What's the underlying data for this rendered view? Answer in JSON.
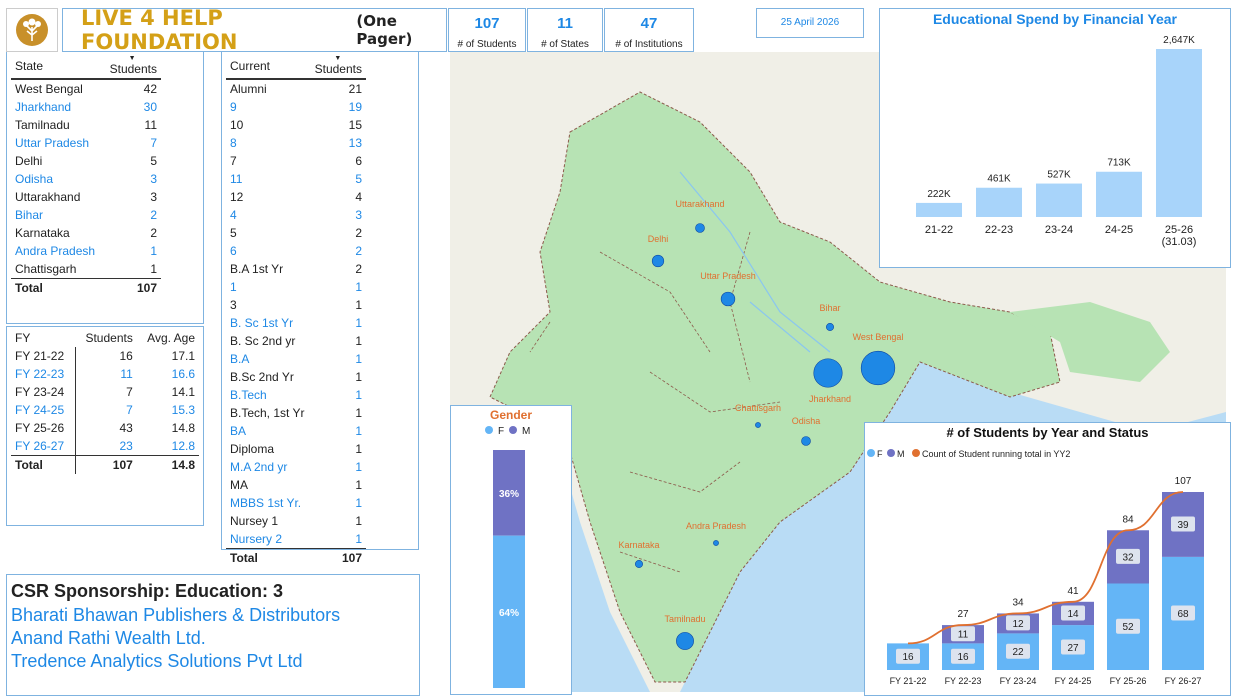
{
  "header": {
    "title": "LIVE 4 HELP FOUNDATION",
    "subtitle": "(One Pager)",
    "date": "25 April 2026"
  },
  "kpis": [
    {
      "value": "107",
      "label": "# of Students"
    },
    {
      "value": "11",
      "label": "# of States"
    },
    {
      "value": "47",
      "label": "# of Institutions"
    }
  ],
  "state_table": {
    "col1": "State",
    "col2": "Students",
    "rows": [
      {
        "name": "West Bengal",
        "value": "42"
      },
      {
        "name": "Jharkhand",
        "value": "30"
      },
      {
        "name": "Tamilnadu",
        "value": "11"
      },
      {
        "name": "Uttar Pradesh",
        "value": "7"
      },
      {
        "name": "Delhi",
        "value": "5"
      },
      {
        "name": "Odisha",
        "value": "3"
      },
      {
        "name": "Uttarakhand",
        "value": "3"
      },
      {
        "name": "Bihar",
        "value": "2"
      },
      {
        "name": "Karnataka",
        "value": "2"
      },
      {
        "name": "Andra Pradesh",
        "value": "1"
      },
      {
        "name": "Chattisgarh",
        "value": "1"
      }
    ],
    "total_label": "Total",
    "total_value": "107"
  },
  "current_table": {
    "col1": "Current",
    "col2": "Students",
    "rows": [
      {
        "name": "Alumni",
        "value": "21"
      },
      {
        "name": "9",
        "value": "19"
      },
      {
        "name": "10",
        "value": "15"
      },
      {
        "name": "8",
        "value": "13"
      },
      {
        "name": "7",
        "value": "6"
      },
      {
        "name": "11",
        "value": "5"
      },
      {
        "name": "12",
        "value": "4"
      },
      {
        "name": "4",
        "value": "3"
      },
      {
        "name": "5",
        "value": "2"
      },
      {
        "name": "6",
        "value": "2"
      },
      {
        "name": "B.A 1st Yr",
        "value": "2"
      },
      {
        "name": "1",
        "value": "1"
      },
      {
        "name": "3",
        "value": "1"
      },
      {
        "name": "B. Sc 1st Yr",
        "value": "1"
      },
      {
        "name": "B. Sc 2nd yr",
        "value": "1"
      },
      {
        "name": "B.A",
        "value": "1"
      },
      {
        "name": "B.Sc 2nd Yr",
        "value": "1"
      },
      {
        "name": "B.Tech",
        "value": "1"
      },
      {
        "name": "B.Tech, 1st Yr",
        "value": "1"
      },
      {
        "name": "BA",
        "value": "1"
      },
      {
        "name": "Diploma",
        "value": "1"
      },
      {
        "name": "M.A 2nd yr",
        "value": "1"
      },
      {
        "name": "MA",
        "value": "1"
      },
      {
        "name": "MBBS 1st Yr.",
        "value": "1"
      },
      {
        "name": "Nursey 1",
        "value": "1"
      },
      {
        "name": "Nursery 2",
        "value": "1"
      }
    ],
    "total_label": "Total",
    "total_value": "107"
  },
  "fy_table": {
    "col1": "FY",
    "col2": "Students",
    "col3": "Avg. Age",
    "rows": [
      {
        "fy": "FY 21-22",
        "students": "16",
        "age": "17.1"
      },
      {
        "fy": "FY 22-23",
        "students": "11",
        "age": "16.6"
      },
      {
        "fy": "FY 23-24",
        "students": "7",
        "age": "14.1"
      },
      {
        "fy": "FY 24-25",
        "students": "7",
        "age": "15.3"
      },
      {
        "fy": "FY 25-26",
        "students": "43",
        "age": "14.8"
      },
      {
        "fy": "FY 26-27",
        "students": "23",
        "age": "12.8"
      }
    ],
    "total_label": "Total",
    "total_students": "107",
    "total_age": "14.8"
  },
  "csr": {
    "heading": "CSR Sponsorship:  Education: 3",
    "sponsors": [
      "Bharati Bhawan Publishers & Distributors",
      "Anand Rathi Wealth Ltd.",
      "Tredence Analytics Solutions Pvt Ltd"
    ]
  },
  "map_labels": {
    "uttarakhand": "Uttarakhand",
    "delhi": "Delhi",
    "uttar_pradesh": "Uttar Pradesh",
    "bihar": "Bihar",
    "west_bengal": "West Bengal",
    "jharkhand": "Jharkhand",
    "chattisgarh": "Chattisgarh",
    "odisha": "Odisha",
    "andra_pradesh": "Andra Pradesh",
    "karnataka": "Karnataka",
    "tamilnadu": "Tamilnadu"
  },
  "colors": {
    "female": "#64b5f6",
    "male": "#6f72c4",
    "line": "#e07030",
    "spend_bar": "#a8d4fa",
    "title_blue": "#1e88e5",
    "label_orange": "#e07030"
  },
  "chart_data": [
    {
      "type": "bar",
      "title": "Educational Spend by Financial Year",
      "categories": [
        "21-22",
        "22-23",
        "23-24",
        "24-25",
        "25-26\n(31.03)"
      ],
      "values": [
        222,
        461,
        527,
        713,
        2647
      ],
      "data_labels": [
        "222K",
        "461K",
        "527K",
        "713K",
        "2,647K"
      ]
    },
    {
      "type": "bar",
      "title": "Gender",
      "categories": [
        "Total"
      ],
      "legend": [
        "F",
        "M"
      ],
      "series": [
        {
          "name": "F",
          "values": [
            64
          ],
          "label": "64%"
        },
        {
          "name": "M",
          "values": [
            36
          ],
          "label": "36%"
        }
      ]
    },
    {
      "type": "bar",
      "title": "# of Students by Year and Status",
      "categories": [
        "FY 21-22",
        "FY 22-23",
        "FY 23-24",
        "FY 24-25",
        "FY 25-26",
        "FY 26-27"
      ],
      "legend": [
        "F",
        "M",
        "Count of Student running total in YY2"
      ],
      "series": [
        {
          "name": "F",
          "values": [
            16,
            16,
            22,
            27,
            52,
            68
          ]
        },
        {
          "name": "M",
          "values": [
            0,
            11,
            12,
            14,
            32,
            39
          ]
        },
        {
          "name": "Count of Student running total in YY2",
          "values": [
            16,
            27,
            34,
            41,
            84,
            107
          ]
        }
      ]
    }
  ]
}
